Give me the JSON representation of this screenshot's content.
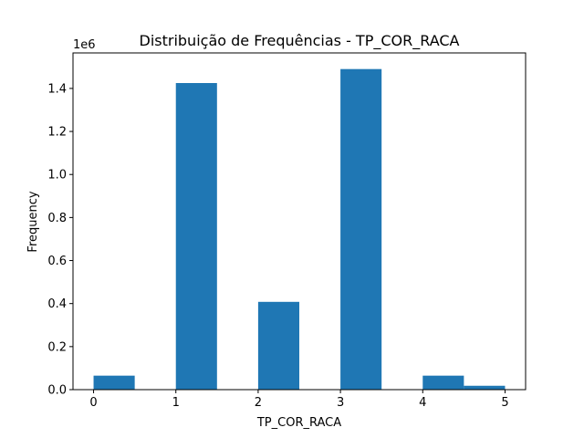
{
  "chart_data": {
    "type": "bar",
    "title": "Distribuição de Frequências - TP_COR_RACA",
    "xlabel": "TP_COR_RACA",
    "ylabel": "Frequency",
    "y_offset_text": "1e6",
    "y_scale": 1000000,
    "xlim": [
      -0.25,
      5.25
    ],
    "ylim": [
      0,
      1.565
    ],
    "x_ticks": [
      0,
      1,
      2,
      3,
      4,
      5
    ],
    "x_tick_labels": [
      "0",
      "1",
      "2",
      "3",
      "4",
      "5"
    ],
    "y_ticks": [
      0,
      0.2,
      0.4,
      0.6,
      0.8,
      1.0,
      1.2,
      1.4
    ],
    "y_tick_labels": [
      "0.0",
      "0.2",
      "0.4",
      "0.6",
      "0.8",
      "1.0",
      "1.2",
      "1.4"
    ],
    "bin_width": 0.5,
    "bins": [
      {
        "start": 0.0,
        "end": 0.5,
        "value": 0.065
      },
      {
        "start": 1.0,
        "end": 1.5,
        "value": 1.425
      },
      {
        "start": 2.0,
        "end": 2.5,
        "value": 0.408
      },
      {
        "start": 3.0,
        "end": 3.5,
        "value": 1.49
      },
      {
        "start": 4.0,
        "end": 4.5,
        "value": 0.065
      },
      {
        "start": 4.5,
        "end": 5.0,
        "value": 0.018
      }
    ],
    "bar_color": "#1f77b4",
    "grid": false,
    "legend": "none"
  }
}
